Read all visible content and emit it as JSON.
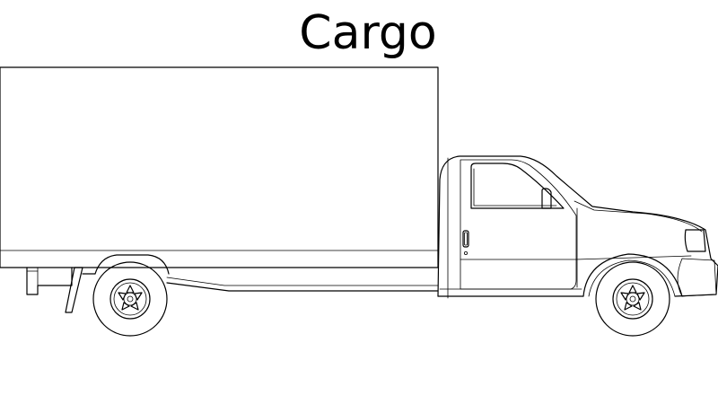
{
  "title": "Cargo"
}
